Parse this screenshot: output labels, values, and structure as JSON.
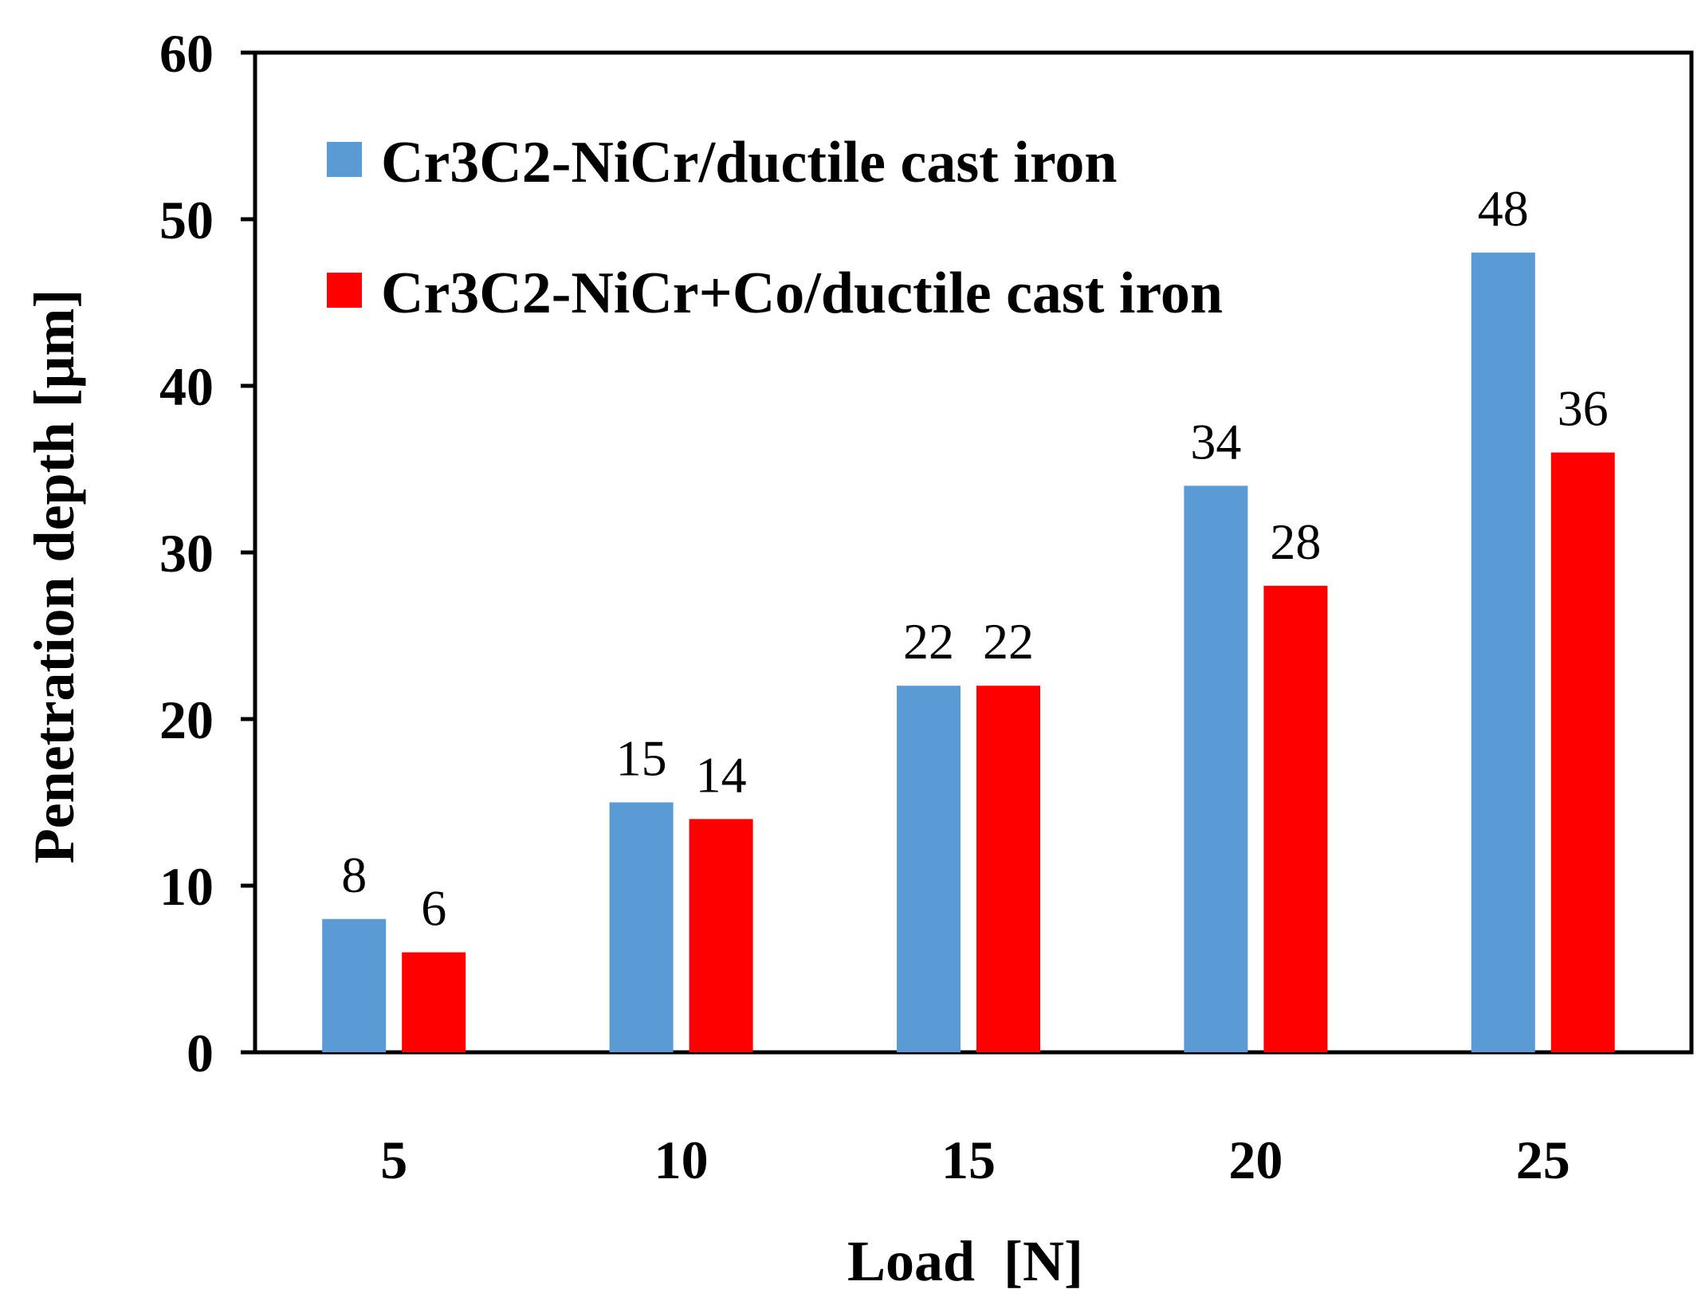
{
  "chart_data": {
    "type": "bar",
    "title": "",
    "xlabel": "Load  [N]",
    "ylabel": "Penetration depth [μm]",
    "categories": [
      "5",
      "10",
      "15",
      "20",
      "25"
    ],
    "ylim": [
      0,
      60
    ],
    "yticks": [
      0,
      10,
      20,
      30,
      40,
      50,
      60
    ],
    "ytick_labels": [
      "0",
      "10",
      "20",
      "30",
      "40",
      "50",
      "60"
    ],
    "grid": false,
    "legend_position": "top-left",
    "series": [
      {
        "name": "Cr3C2-NiCr/ductile cast iron",
        "color": "#5b9bd5",
        "values": [
          8,
          15,
          22,
          34,
          48
        ],
        "labels": [
          "8",
          "15",
          "22",
          "34",
          "48"
        ]
      },
      {
        "name": "Cr3C2-NiCr+Co/ductile cast iron",
        "color": "#ff0000",
        "values": [
          6,
          14,
          22,
          28,
          36
        ],
        "labels": [
          "6",
          "14",
          "22",
          "28",
          "36"
        ]
      }
    ]
  }
}
